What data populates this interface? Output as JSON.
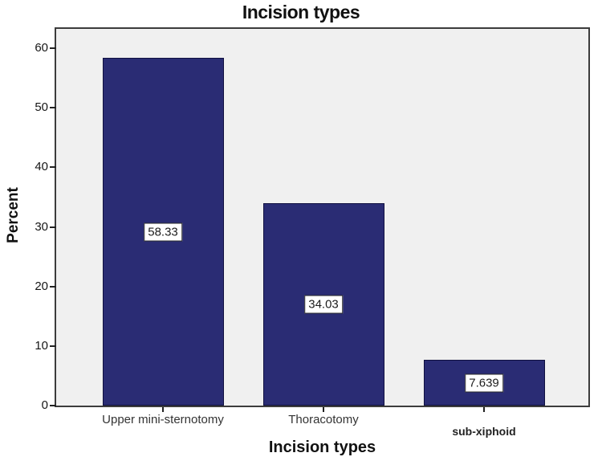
{
  "chart_data": {
    "type": "bar",
    "title": "Incision types",
    "xlabel": "Incision types",
    "ylabel": "Percent",
    "categories": [
      "Upper mini-sternotomy",
      "Thoracotomy",
      "sub-xiphoid"
    ],
    "values": [
      58.33,
      34.03,
      7.639
    ],
    "value_labels": [
      "58.33",
      "34.03",
      "7.639"
    ],
    "category_bold": [
      false,
      false,
      true
    ],
    "ylim": [
      0,
      60
    ],
    "yticks": [
      0,
      10,
      20,
      30,
      40,
      50,
      60
    ],
    "grid": false,
    "legend": "none",
    "colors": {
      "bar_fill": "#2a2c74",
      "bar_border": "#101040",
      "plot_bg": "#f0f0f0",
      "plot_border": "#3c3c3c",
      "label_box_bg": "#ffffff",
      "label_box_border": "#2b2b2b"
    }
  }
}
